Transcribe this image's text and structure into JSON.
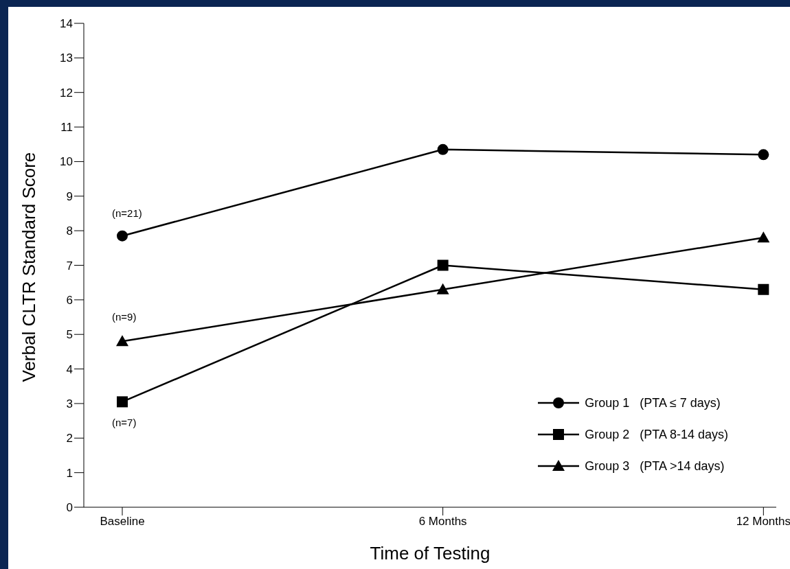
{
  "chart_data": {
    "type": "line",
    "xlabel": "Time of Testing",
    "ylabel": "Verbal CLTR Standard Score",
    "categories": [
      "Baseline",
      "6 Months",
      "12 Months"
    ],
    "series": [
      {
        "name": "Group 1   (PTA ≤ 7 days)",
        "color": "#000000",
        "marker": "circle",
        "values": [
          7.85,
          10.35,
          10.2
        ]
      },
      {
        "name": "Group 2   (PTA 8-14 days)",
        "color": "#000000",
        "marker": "square",
        "values": [
          3.05,
          7.0,
          6.3
        ]
      },
      {
        "name": "Group 3   (PTA >14 days)",
        "color": "#000000",
        "marker": "triangle",
        "values": [
          4.8,
          6.3,
          7.8
        ]
      }
    ],
    "ylim": [
      0,
      14
    ],
    "yticks": [
      0,
      1,
      2,
      3,
      4,
      5,
      6,
      7,
      8,
      9,
      10,
      11,
      12,
      13,
      14
    ],
    "grid": false,
    "legend": "bottom right",
    "line_style": "solid",
    "annotations": [
      "(n=21)",
      "(n=9)",
      "(n=7)"
    ]
  }
}
